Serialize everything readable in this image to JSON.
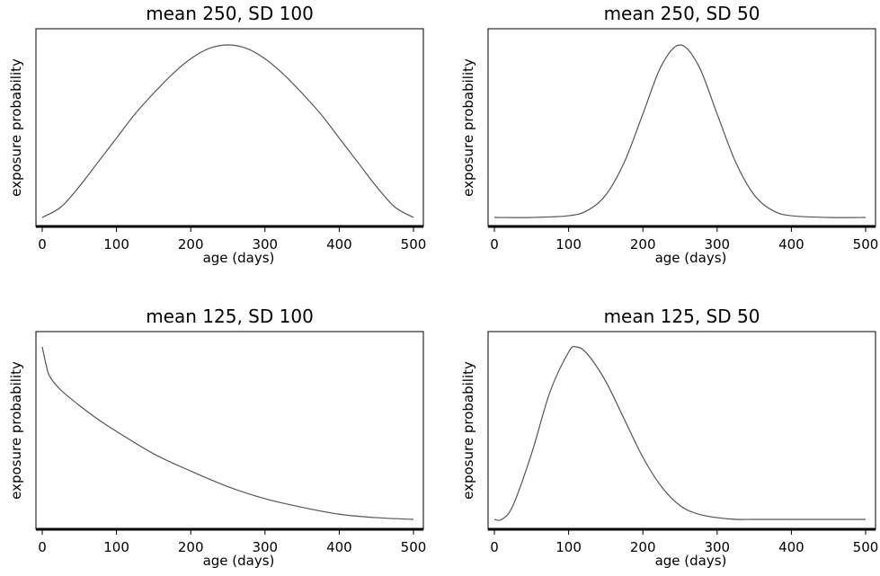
{
  "chart_data": [
    {
      "type": "line",
      "title": "mean 250, SD 100",
      "xlabel": "age (days)",
      "ylabel": "exposure probability",
      "xlim": [
        0,
        500
      ],
      "xticks": [
        0,
        100,
        200,
        300,
        400,
        500
      ],
      "series": [
        {
          "x": [
            0,
            25,
            50,
            75,
            100,
            125,
            150,
            175,
            200,
            225,
            250,
            275,
            300,
            325,
            350,
            375,
            400,
            425,
            450,
            475,
            500
          ],
          "y": [
            0.0,
            0.06,
            0.18,
            0.32,
            0.46,
            0.6,
            0.72,
            0.83,
            0.92,
            0.98,
            1.0,
            0.98,
            0.92,
            0.83,
            0.72,
            0.6,
            0.46,
            0.32,
            0.18,
            0.06,
            0.0
          ]
        }
      ]
    },
    {
      "type": "line",
      "title": "mean 250, SD 50",
      "xlabel": "age (days)",
      "ylabel": "exposure probability",
      "xlim": [
        0,
        500
      ],
      "xticks": [
        0,
        100,
        200,
        300,
        400,
        500
      ],
      "series": [
        {
          "x": [
            0,
            50,
            100,
            125,
            150,
            175,
            200,
            225,
            250,
            275,
            300,
            325,
            350,
            375,
            400,
            450,
            500
          ],
          "y": [
            0.0,
            0.0,
            0.01,
            0.04,
            0.13,
            0.32,
            0.6,
            0.88,
            1.0,
            0.88,
            0.6,
            0.32,
            0.13,
            0.04,
            0.01,
            0.0,
            0.0
          ]
        }
      ]
    },
    {
      "type": "line",
      "title": "mean 125, SD 100",
      "xlabel": "age (days)",
      "ylabel": "exposure probability",
      "xlim": [
        0,
        500
      ],
      "xticks": [
        0,
        100,
        200,
        300,
        400,
        500
      ],
      "series": [
        {
          "x": [
            0,
            5,
            10,
            25,
            50,
            75,
            100,
            150,
            200,
            250,
            300,
            350,
            400,
            450,
            500
          ],
          "y": [
            1.0,
            0.9,
            0.83,
            0.75,
            0.66,
            0.58,
            0.51,
            0.38,
            0.28,
            0.19,
            0.12,
            0.07,
            0.03,
            0.01,
            0.0
          ]
        }
      ]
    },
    {
      "type": "line",
      "title": "mean 125, SD 50",
      "xlabel": "age (days)",
      "ylabel": "exposure probability",
      "xlim": [
        0,
        500
      ],
      "xticks": [
        0,
        100,
        200,
        300,
        400,
        500
      ],
      "series": [
        {
          "x": [
            0,
            10,
            25,
            50,
            75,
            100,
            110,
            125,
            150,
            175,
            200,
            225,
            250,
            275,
            300,
            325,
            350,
            400,
            450,
            500
          ],
          "y": [
            0.0,
            0.0,
            0.08,
            0.38,
            0.74,
            0.97,
            1.0,
            0.96,
            0.8,
            0.58,
            0.36,
            0.19,
            0.08,
            0.03,
            0.01,
            0.0,
            0.0,
            0.0,
            0.0,
            0.0
          ]
        }
      ]
    }
  ]
}
